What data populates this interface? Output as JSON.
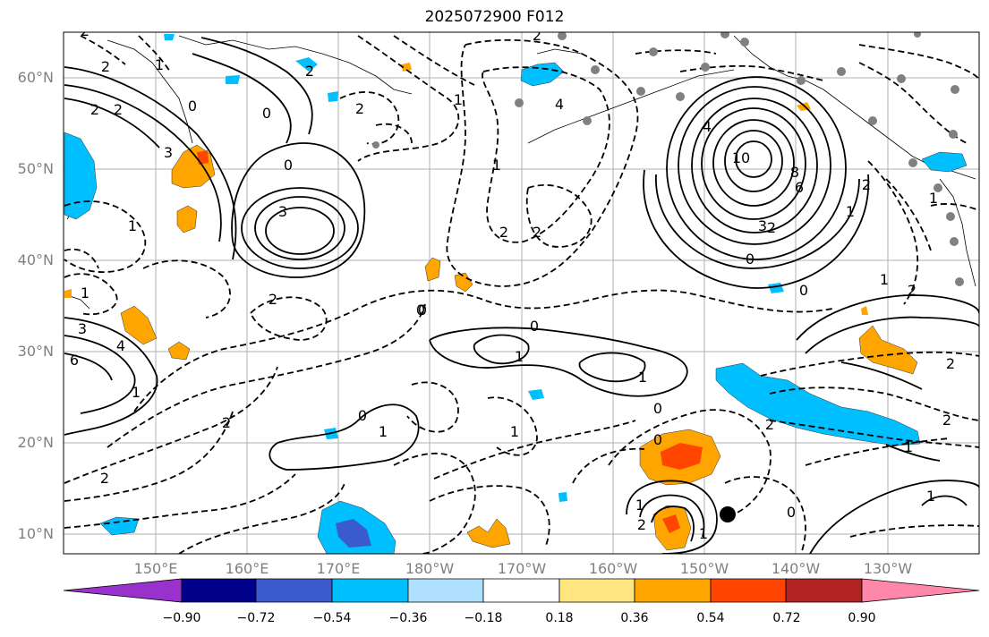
{
  "title": "2025072900 F012",
  "lat_labels": [
    "60°N",
    "50°N",
    "40°N",
    "30°N",
    "20°N",
    "10°N"
  ],
  "lon_labels": [
    "150°E",
    "160°E",
    "170°E",
    "180°W",
    "170°W",
    "160°W",
    "150°W",
    "140°W",
    "130°W"
  ],
  "contour_labels": [
    "2",
    "2",
    "1",
    "2",
    "0",
    "2",
    "3",
    "2",
    "0",
    "3",
    "0",
    "2",
    "1",
    "0",
    "2",
    "4",
    "10",
    "8",
    "6",
    "4",
    "3",
    "2",
    "0",
    "2",
    "1",
    "2",
    "0",
    "2",
    "1",
    "2",
    "0",
    "0",
    "0",
    "1",
    "1",
    "1",
    "0",
    "2",
    "2",
    "1",
    "0",
    "2",
    "1",
    "2",
    "0",
    "1",
    "2",
    "4",
    "6",
    "3",
    "1",
    "1",
    "1",
    "2",
    "1",
    "2",
    "1",
    "1",
    "1"
  ],
  "colorbar": {
    "ticks": [
      "−0.90",
      "−0.72",
      "−0.54",
      "−0.36",
      "−0.18",
      "0.18",
      "0.36",
      "0.54",
      "0.72",
      "0.90"
    ],
    "colors": [
      "#9932cc",
      "#00008b",
      "#3a5bcd",
      "#00bfff",
      "#b0e0ff",
      "#ffffff",
      "#ffe680",
      "#ffa500",
      "#ff4500",
      "#b22222",
      "#ff88aa"
    ]
  },
  "colors": {
    "neg_fill_light": "#00bfff",
    "neg_fill_mid": "#3a5bcd",
    "neg_fill_dark": "#00008b",
    "pos_fill_light": "#ffa500",
    "pos_fill_mid": "#ff4500",
    "station_dot": "#808080",
    "marker": "#000000"
  }
}
